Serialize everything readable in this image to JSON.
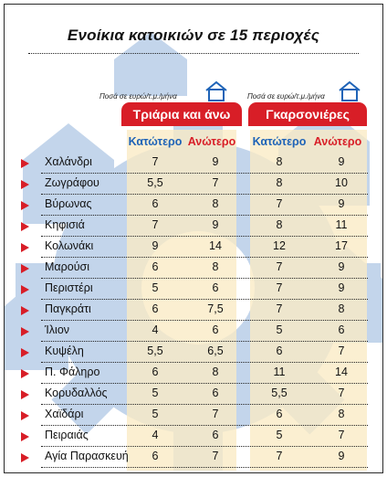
{
  "title": "Ενοίκια κατοικιών σε 15 περιοχές",
  "unit_note": "Ποσά σε ευρώ/τ.μ./μήνα",
  "groups": [
    {
      "label": "Τριάρια και άνω"
    },
    {
      "label": "Γκαρσονιέρες"
    }
  ],
  "col_headers": {
    "low": "Κατώτερο",
    "high": "Ανώτερο"
  },
  "icons": {
    "row_marker": "arrow-right-icon",
    "house": "house-icon"
  },
  "colors": {
    "accent": "#d81e27",
    "blue": "#1e63b7",
    "column_bg": "#faeac4",
    "watermark": "#b8cce6"
  },
  "chart_data": {
    "type": "table",
    "title": "Ενοίκια κατοικιών σε 15 περιοχές",
    "unit": "Ποσά σε ευρώ/τ.μ./μήνα",
    "groups": [
      "Τριάρια και άνω",
      "Γκαρσονιέρες"
    ],
    "columns": [
      "Κατώτερο",
      "Ανώτερο",
      "Κατώτερο",
      "Ανώτερο"
    ],
    "rows": [
      {
        "area": "Χαλάνδρι",
        "values": [
          "7",
          "9",
          "8",
          "9"
        ]
      },
      {
        "area": "Ζωγράφου",
        "values": [
          "5,5",
          "7",
          "8",
          "10"
        ]
      },
      {
        "area": "Βύρωνας",
        "values": [
          "6",
          "8",
          "7",
          "9"
        ]
      },
      {
        "area": "Κηφισιά",
        "values": [
          "7",
          "9",
          "8",
          "11"
        ]
      },
      {
        "area": "Κολωνάκι",
        "values": [
          "9",
          "14",
          "12",
          "17"
        ]
      },
      {
        "area": "Μαρούσι",
        "values": [
          "6",
          "8",
          "7",
          "9"
        ]
      },
      {
        "area": "Περιστέρι",
        "values": [
          "5",
          "6",
          "7",
          "9"
        ]
      },
      {
        "area": "Παγκράτι",
        "values": [
          "6",
          "7,5",
          "7",
          "8"
        ]
      },
      {
        "area": "Ίλιον",
        "values": [
          "4",
          "6",
          "5",
          "6"
        ]
      },
      {
        "area": "Κυψέλη",
        "values": [
          "5,5",
          "6,5",
          "6",
          "7"
        ]
      },
      {
        "area": "Π. Φάληρο",
        "values": [
          "6",
          "8",
          "11",
          "14"
        ]
      },
      {
        "area": "Κορυδαλλός",
        "values": [
          "5",
          "6",
          "5,5",
          "7"
        ]
      },
      {
        "area": "Χαϊδάρι",
        "values": [
          "5",
          "7",
          "6",
          "8"
        ]
      },
      {
        "area": "Πειραιάς",
        "values": [
          "4",
          "6",
          "5",
          "7"
        ]
      },
      {
        "area": "Αγία Παρασκευή",
        "values": [
          "6",
          "7",
          "7",
          "9"
        ]
      }
    ]
  }
}
